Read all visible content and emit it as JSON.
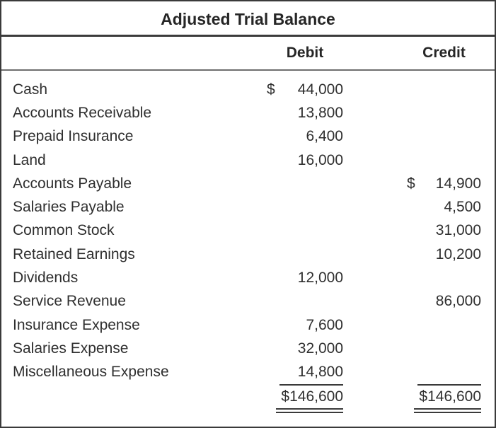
{
  "title": "Adjusted Trial Balance",
  "columns": {
    "debit": "Debit",
    "credit": "Credit"
  },
  "rows": [
    {
      "label": "Cash",
      "debit_dollar": "$",
      "debit": "44,000",
      "credit_dollar": "",
      "credit": ""
    },
    {
      "label": "Accounts Receivable",
      "debit_dollar": "",
      "debit": "13,800",
      "credit_dollar": "",
      "credit": ""
    },
    {
      "label": "Prepaid Insurance",
      "debit_dollar": "",
      "debit": "6,400",
      "credit_dollar": "",
      "credit": ""
    },
    {
      "label": "Land",
      "debit_dollar": "",
      "debit": "16,000",
      "credit_dollar": "",
      "credit": ""
    },
    {
      "label": "Accounts Payable",
      "debit_dollar": "",
      "debit": "",
      "credit_dollar": "$",
      "credit": "14,900"
    },
    {
      "label": "Salaries Payable",
      "debit_dollar": "",
      "debit": "",
      "credit_dollar": "",
      "credit": "4,500"
    },
    {
      "label": "Common Stock",
      "debit_dollar": "",
      "debit": "",
      "credit_dollar": "",
      "credit": "31,000"
    },
    {
      "label": "Retained Earnings",
      "debit_dollar": "",
      "debit": "",
      "credit_dollar": "",
      "credit": "10,200"
    },
    {
      "label": "Dividends",
      "debit_dollar": "",
      "debit": "12,000",
      "credit_dollar": "",
      "credit": ""
    },
    {
      "label": "Service Revenue",
      "debit_dollar": "",
      "debit": "",
      "credit_dollar": "",
      "credit": "86,000"
    },
    {
      "label": "Insurance Expense",
      "debit_dollar": "",
      "debit": "7,600",
      "credit_dollar": "",
      "credit": ""
    },
    {
      "label": "Salaries Expense",
      "debit_dollar": "",
      "debit": "32,000",
      "credit_dollar": "",
      "credit": ""
    },
    {
      "label": "Miscellaneous Expense",
      "debit_dollar": "",
      "debit": "14,800",
      "credit_dollar": "",
      "credit": ""
    }
  ],
  "totals": {
    "debit": "$146,600",
    "credit": "$146,600"
  },
  "colors": {
    "border": "#3a3a3a",
    "text": "#2f2f2f",
    "header_divider": "#6e6e6e"
  }
}
